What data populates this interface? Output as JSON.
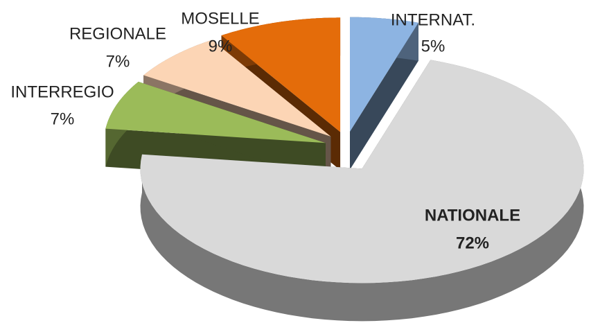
{
  "chart_data": {
    "type": "pie",
    "categories": [
      "INTERNAT.",
      "NATIONALE",
      "INTERREGIO",
      "REGIONALE",
      "MOSELLE"
    ],
    "values": [
      5,
      72,
      7,
      7,
      9
    ],
    "value_labels": [
      "5%",
      "72%",
      "7%",
      "7%",
      "9%"
    ],
    "colors": [
      "#8db4e2",
      "#d9d9d9",
      "#9bbb59",
      "#fcd5b5",
      "#e46c0a"
    ]
  }
}
